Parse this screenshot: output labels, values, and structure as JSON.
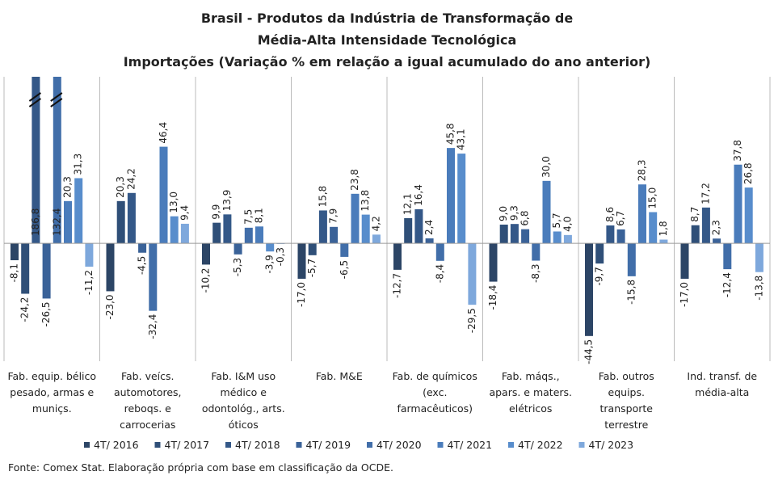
{
  "chart_data": {
    "type": "bar",
    "title": [
      "Brasil - Produtos da Indústria de Transformação de",
      "Média-Alta Intensidade Tecnológica"
    ],
    "subtitle": "Importações (Variação % em relação a igual acumulado do ano anterior)",
    "categories": [
      "Fab. equip. bélico pesado, armas e muniçs.",
      "Fab. veícs. automotores, reboqs. e carrocerias",
      "Fab. I&M uso médico e odontológ., arts. óticos",
      "Fab. M&E",
      "Fab. de químicos (exc. farmacêuticos)",
      "Fab. máqs., apars. e maters. elétricos",
      "Fab. outros equips. transporte terrestre",
      "Ind. transf. de média-alta"
    ],
    "series": [
      {
        "name": "4T/ 2016",
        "color": "#2c4566",
        "values": [
          -8.1,
          -23.0,
          -10.2,
          -17.0,
          -12.7,
          -18.4,
          -44.5,
          -17.0
        ],
        "value_labels": [
          "-8,1",
          "-23,0",
          "-10,2",
          "-17,0",
          "-12,7",
          "-18,4",
          "-44,5",
          "-17,0"
        ]
      },
      {
        "name": "4T/ 2017",
        "color": "#2f4f78",
        "values": [
          -24.2,
          20.3,
          9.9,
          -5.7,
          12.1,
          9.0,
          -9.7,
          8.7
        ],
        "value_labels": [
          "-24,2",
          "20,3",
          "9,9",
          "-5,7",
          "12,1",
          "9,0",
          "-9,7",
          "8,7"
        ]
      },
      {
        "name": "4T/ 2018",
        "color": "#345888",
        "values": [
          186.8,
          24.2,
          13.9,
          15.8,
          16.4,
          9.3,
          8.6,
          17.2
        ],
        "value_labels": [
          "186,8",
          "24,2",
          "13,9",
          "15,8",
          "16,4",
          "9,3",
          "8,6",
          "17,2"
        ]
      },
      {
        "name": "4T/ 2019",
        "color": "#3a6298",
        "values": [
          -26.5,
          -4.5,
          -5.3,
          7.9,
          2.4,
          6.8,
          6.7,
          2.3
        ],
        "value_labels": [
          "-26,5",
          "-4,5",
          "-5,3",
          "7,9",
          "2,4",
          "6,8",
          "6,7",
          "2,3"
        ]
      },
      {
        "name": "4T/ 2020",
        "color": "#416ea9",
        "values": [
          132.4,
          -32.4,
          7.5,
          -6.5,
          -8.4,
          -8.3,
          -15.8,
          -12.4
        ],
        "value_labels": [
          "132,4",
          "-32,4",
          "7,5",
          "-6,5",
          "-8,4",
          "-8,3",
          "-15,8",
          "-12,4"
        ]
      },
      {
        "name": "4T/ 2021",
        "color": "#4a7cbb",
        "values": [
          20.3,
          46.4,
          8.1,
          23.8,
          45.8,
          30.0,
          28.3,
          37.8
        ],
        "value_labels": [
          "20,3",
          "46,4",
          "8,1",
          "23,8",
          "45,8",
          "30,0",
          "28,3",
          "37,8"
        ]
      },
      {
        "name": "4T/ 2022",
        "color": "#588dcc",
        "values": [
          31.3,
          13.0,
          -3.9,
          13.8,
          43.1,
          5.7,
          15.0,
          26.8
        ],
        "value_labels": [
          "31,3",
          "13,0",
          "-3,9",
          "13,8",
          "43,1",
          "5,7",
          "15,0",
          "26,8"
        ]
      },
      {
        "name": "4T/ 2023",
        "color": "#7ea8dc",
        "values": [
          -11.2,
          9.4,
          -0.3,
          4.2,
          -29.5,
          4.0,
          1.8,
          -13.8
        ],
        "value_labels": [
          "-11,2",
          "9,4",
          "-0,3",
          "4,2",
          "-29,5",
          "4,0",
          "1,8",
          "-13,8"
        ]
      }
    ],
    "ylim": [
      -56.6,
      80
    ],
    "source": "Fonte: Comex Stat. Elaboração própria com base em classificação da OCDE."
  }
}
